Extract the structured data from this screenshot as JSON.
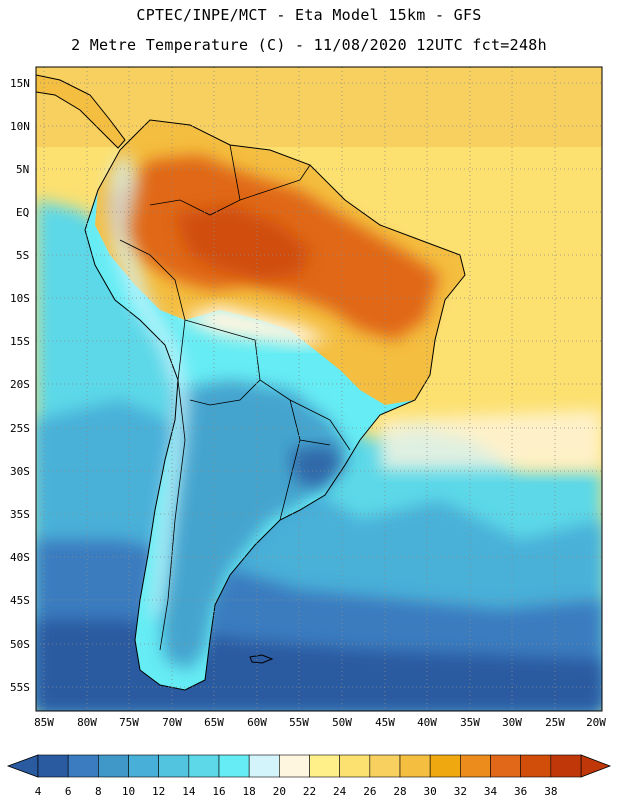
{
  "header": {
    "line1": "CPTEC/INPE/MCT -  Eta Model 15km - GFS",
    "line2": "2 Metre Temperature (C) - 11/08/2020 12UTC fct=248h"
  },
  "map": {
    "lat_labels": [
      "15N",
      "10N",
      "5N",
      "EQ",
      "5S",
      "10S",
      "15S",
      "20S",
      "25S",
      "30S",
      "35S",
      "40S",
      "45S",
      "50S",
      "55S"
    ],
    "lon_labels": [
      "85W",
      "80W",
      "75W",
      "70W",
      "65W",
      "60W",
      "55W",
      "50W",
      "45W",
      "40W",
      "35W",
      "30W",
      "25W",
      "20W"
    ]
  },
  "legend": {
    "values": [
      "4",
      "6",
      "8",
      "10",
      "12",
      "14",
      "16",
      "18",
      "20",
      "22",
      "24",
      "26",
      "28",
      "30",
      "32",
      "34",
      "36",
      "38"
    ],
    "colors": [
      "#2a5aa0",
      "#3a7cbf",
      "#3f98c8",
      "#48b0d8",
      "#52c4e0",
      "#5cd8e8",
      "#66ecf4",
      "#d4f4fc",
      "#fff6e0",
      "#fff08a",
      "#fce070",
      "#f8d060",
      "#f4be40",
      "#f0a810",
      "#ec8c1c",
      "#e06818",
      "#d04e0a",
      "#c0380a"
    ],
    "low_color": "#2a5aa0",
    "high_color": "#c0380a"
  },
  "style": {
    "ocean_south": "#2a5aa0",
    "ocean_mid": "#48b0d8",
    "ocean_warm": "#fce070",
    "land_hot": "#e06818",
    "land_warm": "#f4be40"
  }
}
